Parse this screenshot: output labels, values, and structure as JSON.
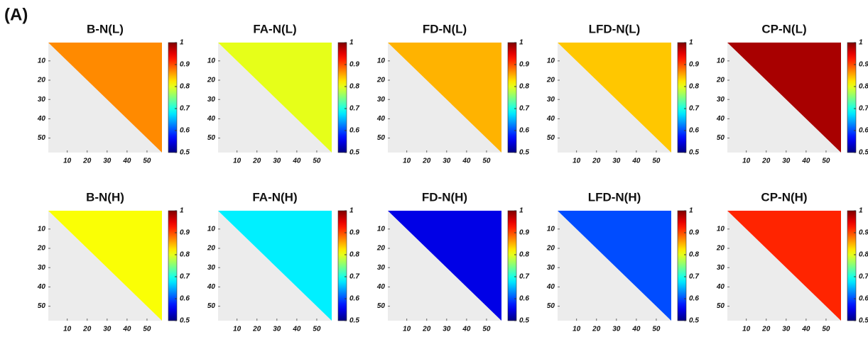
{
  "panel_label": "(A)",
  "chart_data": [
    {
      "type": "heatmap",
      "title": "B-N(L)",
      "value": 0.87,
      "xlim": [
        0.5,
        57.5
      ],
      "ylim": [
        0.5,
        57.5
      ],
      "xticks": [
        10,
        20,
        30,
        40,
        50
      ],
      "yticks": [
        10,
        20,
        30,
        40,
        50
      ],
      "clim": [
        0.5,
        1
      ],
      "cticks": [
        0.5,
        0.6,
        0.7,
        0.8,
        0.9,
        1
      ],
      "colormap": "jet"
    },
    {
      "type": "heatmap",
      "title": "FA-N(L)",
      "value": 0.8,
      "xlim": [
        0.5,
        57.5
      ],
      "ylim": [
        0.5,
        57.5
      ],
      "xticks": [
        10,
        20,
        30,
        40,
        50
      ],
      "yticks": [
        10,
        20,
        30,
        40,
        50
      ],
      "clim": [
        0.5,
        1
      ],
      "cticks": [
        0.5,
        0.6,
        0.7,
        0.8,
        0.9,
        1
      ],
      "colormap": "jet"
    },
    {
      "type": "heatmap",
      "title": "FD-N(L)",
      "value": 0.85,
      "xlim": [
        0.5,
        57.5
      ],
      "ylim": [
        0.5,
        57.5
      ],
      "xticks": [
        10,
        20,
        30,
        40,
        50
      ],
      "yticks": [
        10,
        20,
        30,
        40,
        50
      ],
      "clim": [
        0.5,
        1
      ],
      "cticks": [
        0.5,
        0.6,
        0.7,
        0.8,
        0.9,
        1
      ],
      "colormap": "jet"
    },
    {
      "type": "heatmap",
      "title": "LFD-N(L)",
      "value": 0.84,
      "xlim": [
        0.5,
        57.5
      ],
      "ylim": [
        0.5,
        57.5
      ],
      "xticks": [
        10,
        20,
        30,
        40,
        50
      ],
      "yticks": [
        10,
        20,
        30,
        40,
        50
      ],
      "clim": [
        0.5,
        1
      ],
      "cticks": [
        0.5,
        0.6,
        0.7,
        0.8,
        0.9,
        1
      ],
      "colormap": "jet"
    },
    {
      "type": "heatmap",
      "title": "CP-N(L)",
      "value": 0.98,
      "xlim": [
        0.5,
        57.5
      ],
      "ylim": [
        0.5,
        57.5
      ],
      "xticks": [
        10,
        20,
        30,
        40,
        50
      ],
      "yticks": [
        10,
        20,
        30,
        40,
        50
      ],
      "clim": [
        0.5,
        1
      ],
      "cticks": [
        0.5,
        0.6,
        0.7,
        0.8,
        0.9,
        1
      ],
      "colormap": "jet"
    },
    {
      "type": "heatmap",
      "title": "B-N(H)",
      "value": 0.81,
      "xlim": [
        0.5,
        57.5
      ],
      "ylim": [
        0.5,
        57.5
      ],
      "xticks": [
        10,
        20,
        30,
        40,
        50
      ],
      "yticks": [
        10,
        20,
        30,
        40,
        50
      ],
      "clim": [
        0.5,
        1
      ],
      "cticks": [
        0.5,
        0.6,
        0.7,
        0.8,
        0.9,
        1
      ],
      "colormap": "jet"
    },
    {
      "type": "heatmap",
      "title": "FA-N(H)",
      "value": 0.68,
      "xlim": [
        0.5,
        57.5
      ],
      "ylim": [
        0.5,
        57.5
      ],
      "xticks": [
        10,
        20,
        30,
        40,
        50
      ],
      "yticks": [
        10,
        20,
        30,
        40,
        50
      ],
      "clim": [
        0.5,
        1
      ],
      "cticks": [
        0.5,
        0.6,
        0.7,
        0.8,
        0.9,
        1
      ],
      "colormap": "jet"
    },
    {
      "type": "heatmap",
      "title": "FD-N(H)",
      "value": 0.55,
      "xlim": [
        0.5,
        57.5
      ],
      "ylim": [
        0.5,
        57.5
      ],
      "xticks": [
        10,
        20,
        30,
        40,
        50
      ],
      "yticks": [
        10,
        20,
        30,
        40,
        50
      ],
      "clim": [
        0.5,
        1
      ],
      "cticks": [
        0.5,
        0.6,
        0.7,
        0.8,
        0.9,
        1
      ],
      "colormap": "jet"
    },
    {
      "type": "heatmap",
      "title": "LFD-N(H)",
      "value": 0.6,
      "xlim": [
        0.5,
        57.5
      ],
      "ylim": [
        0.5,
        57.5
      ],
      "xticks": [
        10,
        20,
        30,
        40,
        50
      ],
      "yticks": [
        10,
        20,
        30,
        40,
        50
      ],
      "clim": [
        0.5,
        1
      ],
      "cticks": [
        0.5,
        0.6,
        0.7,
        0.8,
        0.9,
        1
      ],
      "colormap": "jet"
    },
    {
      "type": "heatmap",
      "title": "CP-N(H)",
      "value": 0.92,
      "xlim": [
        0.5,
        57.5
      ],
      "ylim": [
        0.5,
        57.5
      ],
      "xticks": [
        10,
        20,
        30,
        40,
        50
      ],
      "yticks": [
        10,
        20,
        30,
        40,
        50
      ],
      "clim": [
        0.5,
        1
      ],
      "cticks": [
        0.5,
        0.6,
        0.7,
        0.8,
        0.9,
        1
      ],
      "colormap": "jet"
    }
  ]
}
